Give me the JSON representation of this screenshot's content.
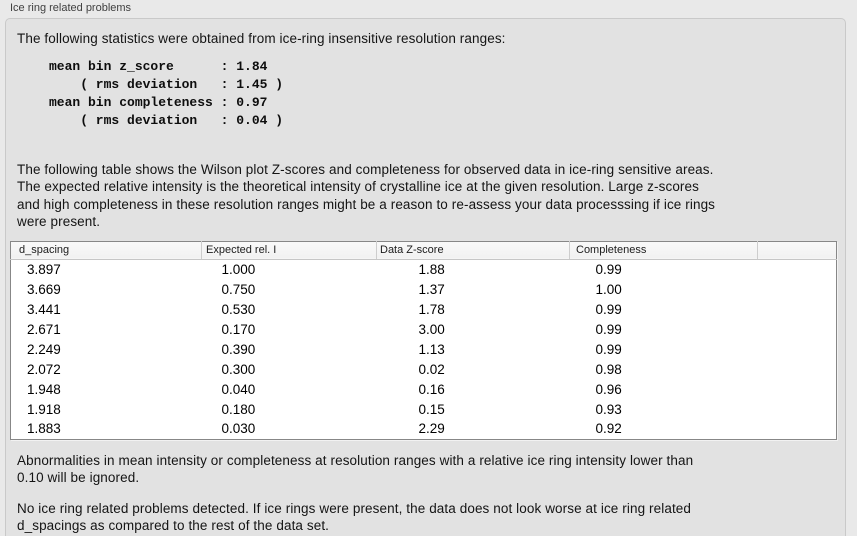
{
  "panel": {
    "title": "Ice ring related problems"
  },
  "intro_text": "The following statistics were obtained from ice-ring insensitive resolution ranges:",
  "stats_block": "mean bin z_score      : 1.84\n    ( rms deviation   : 1.45 )\nmean bin completeness : 0.97\n    ( rms deviation   : 0.04 )",
  "stats": {
    "mean_bin_z_score": "1.84",
    "z_score_rms_deviation": "1.45",
    "mean_bin_completeness": "0.97",
    "completeness_rms_deviation": "0.04"
  },
  "table_intro": "The following table shows the Wilson plot Z-scores and completeness for observed data in ice-ring sensitive areas.\nThe expected relative intensity is the theoretical intensity of crystalline ice at the given resolution. Large z-scores\nand high completeness in these resolution ranges might be a reason to re-assess your data processsing if ice rings\nwere present.",
  "table": {
    "columns": [
      "d_spacing",
      "Expected rel. I",
      "Data Z-score",
      "Completeness",
      ""
    ],
    "rows": [
      [
        "3.897",
        "1.000",
        "1.88",
        "0.99",
        ""
      ],
      [
        "3.669",
        "0.750",
        "1.37",
        "1.00",
        ""
      ],
      [
        "3.441",
        "0.530",
        "1.78",
        "0.99",
        ""
      ],
      [
        "2.671",
        "0.170",
        "3.00",
        "0.99",
        ""
      ],
      [
        "2.249",
        "0.390",
        "1.13",
        "0.99",
        ""
      ],
      [
        "2.072",
        "0.300",
        "0.02",
        "0.98",
        ""
      ],
      [
        "1.948",
        "0.040",
        "0.16",
        "0.96",
        ""
      ],
      [
        "1.918",
        "0.180",
        "0.15",
        "0.93",
        ""
      ],
      [
        "1.883",
        "0.030",
        "2.29",
        "0.92",
        ""
      ]
    ]
  },
  "note_text": "Abnormalities in mean intensity or completeness at resolution ranges with a relative ice ring intensity lower than\n0.10 will be ignored.",
  "conclusion_text": "No ice ring related problems detected. If ice rings were present, the data does not look worse at ice ring related\nd_spacings as compared to the rest of the data set.",
  "colors": {
    "page_background": "#e9e9e9",
    "panel_background": "#e2e2e2",
    "panel_border": "#c9c9c9",
    "table_background": "#ffffff",
    "table_border": "#878787",
    "table_header_background": "#f5f5f5",
    "text": "#141414"
  }
}
